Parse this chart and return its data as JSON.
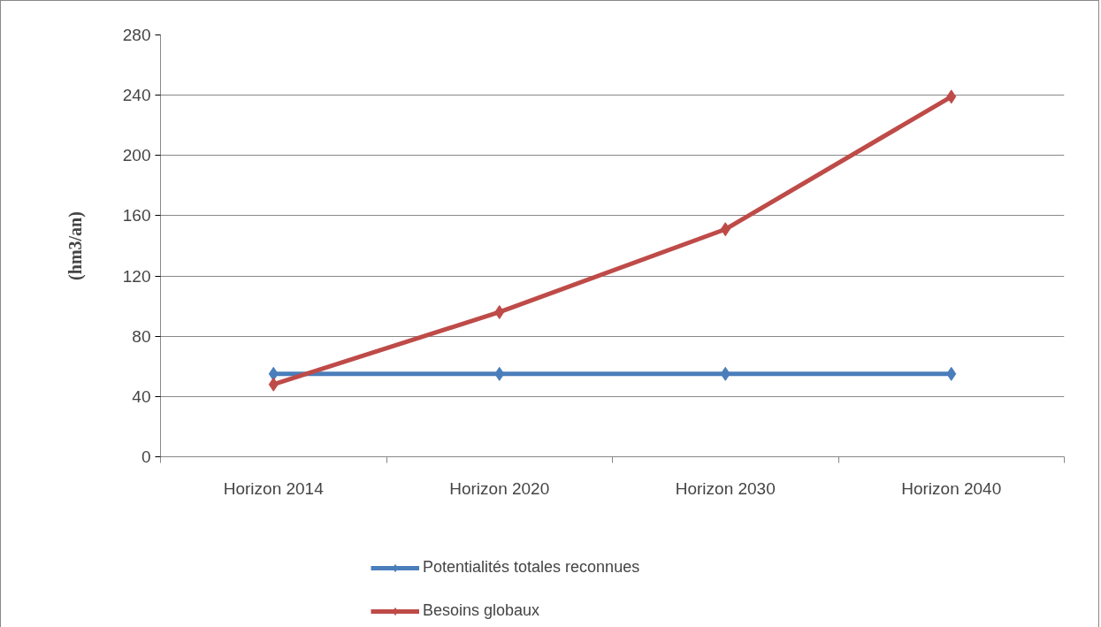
{
  "chart_data": {
    "type": "line",
    "ylabel": "(hm3/an)",
    "categories": [
      "Horizon 2014",
      "Horizon 2020",
      "Horizon 2030",
      "Horizon 2040"
    ],
    "series": [
      {
        "name": "Potentialités totales reconnues",
        "color": "#4a7ebb",
        "values": [
          55,
          55,
          55,
          55
        ]
      },
      {
        "name": "Besoins globaux",
        "color": "#be4b48",
        "values": [
          48,
          96,
          151,
          239
        ]
      }
    ],
    "ylim": [
      0,
      280
    ],
    "yticks": [
      0,
      40,
      80,
      120,
      160,
      200,
      240,
      280
    ],
    "grid": "y",
    "legend": "bottom",
    "marker": "diamond",
    "line_style": "solid"
  }
}
